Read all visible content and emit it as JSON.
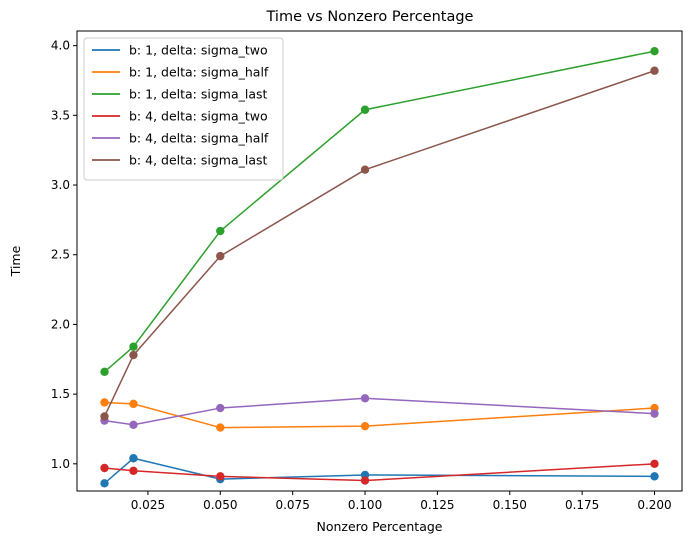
{
  "chart_data": {
    "type": "line",
    "title": "Time vs Nonzero Percentage",
    "xlabel": "Nonzero Percentage",
    "ylabel": "Time",
    "xlim": [
      0.0005,
      0.2095
    ],
    "ylim": [
      0.805,
      4.105
    ],
    "xticks": [
      0.025,
      0.05,
      0.075,
      0.1,
      0.125,
      0.15,
      0.175,
      0.2
    ],
    "xtick_labels": [
      "0.025",
      "0.050",
      "0.075",
      "0.100",
      "0.125",
      "0.150",
      "0.175",
      "0.200"
    ],
    "yticks": [
      1.0,
      1.5,
      2.0,
      2.5,
      3.0,
      3.5,
      4.0
    ],
    "ytick_labels": [
      "1.0",
      "1.5",
      "2.0",
      "2.5",
      "3.0",
      "3.5",
      "4.0"
    ],
    "grid": false,
    "legend_position": "upper-left",
    "x": [
      0.01,
      0.02,
      0.05,
      0.1,
      0.2
    ],
    "series": [
      {
        "name": "b: 1, delta: sigma_two",
        "color": "#1f77b4",
        "values": [
          0.86,
          1.04,
          0.89,
          0.92,
          0.91
        ]
      },
      {
        "name": "b: 1, delta: sigma_half",
        "color": "#ff7f0e",
        "values": [
          1.44,
          1.43,
          1.26,
          1.27,
          1.4
        ]
      },
      {
        "name": "b: 1, delta: sigma_last",
        "color": "#2ca02c",
        "values": [
          1.66,
          1.84,
          2.67,
          3.54,
          3.96
        ]
      },
      {
        "name": "b: 4, delta: sigma_two",
        "color": "#d62728",
        "values": [
          0.97,
          0.95,
          0.91,
          0.88,
          1.0
        ]
      },
      {
        "name": "b: 4, delta: sigma_half",
        "color": "#9467bd",
        "values": [
          1.31,
          1.28,
          1.4,
          1.47,
          1.36
        ]
      },
      {
        "name": "b: 4, delta: sigma_last",
        "color": "#8c564b",
        "values": [
          1.34,
          1.78,
          2.49,
          3.11,
          3.82
        ]
      }
    ]
  }
}
